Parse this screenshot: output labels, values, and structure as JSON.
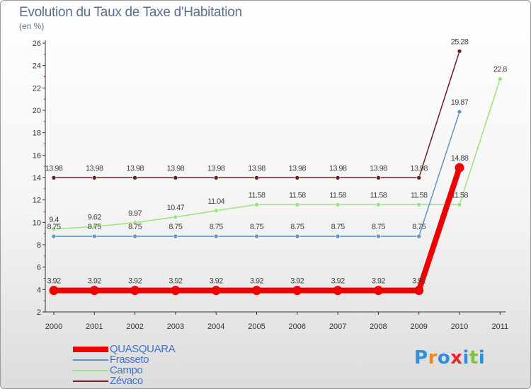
{
  "chart_data": {
    "type": "line",
    "title": "Evolution du Taux de Taxe d'Habitation",
    "unit_label": "(en %)",
    "xlabel": "",
    "ylabel": "",
    "ylim": [
      2,
      26
    ],
    "yticks": [
      2,
      4,
      6,
      8,
      10,
      12,
      14,
      16,
      18,
      20,
      22,
      24,
      26
    ],
    "x": [
      "2000",
      "2001",
      "2002",
      "2003",
      "2004",
      "2005",
      "2006",
      "2007",
      "2008",
      "2009",
      "2010",
      "2011"
    ],
    "grid": false,
    "legend_position": "bottom-left",
    "series": [
      {
        "name": "Zévaco",
        "color": "#6b1e1e",
        "values": [
          13.98,
          13.98,
          13.98,
          13.98,
          13.98,
          13.98,
          13.98,
          13.98,
          13.98,
          13.98,
          25.28,
          null
        ],
        "labels": [
          "13.98",
          "13.98",
          "13.98",
          "13.98",
          "13.98",
          "13.98",
          "13.98",
          "13.98",
          "13.98",
          "13.98",
          "25.28",
          null
        ]
      },
      {
        "name": "Campo",
        "color": "#9be37a",
        "values": [
          9.4,
          9.62,
          9.97,
          10.47,
          11.04,
          11.58,
          11.58,
          11.58,
          11.58,
          11.58,
          11.58,
          22.8
        ],
        "labels": [
          "9.4",
          "9.62",
          "9.97",
          "10.47",
          "11.04",
          "11.58",
          "11.58",
          "11.58",
          "11.58",
          "11.58",
          "11.58",
          "22.8"
        ]
      },
      {
        "name": "Frasseto",
        "color": "#5b96c8",
        "values": [
          8.75,
          8.75,
          8.75,
          8.75,
          8.75,
          8.75,
          8.75,
          8.75,
          8.75,
          8.75,
          19.87,
          null
        ],
        "labels": [
          "8.75",
          "8.75",
          "8.75",
          "8.75",
          "8.75",
          "8.75",
          "8.75",
          "8.75",
          "8.75",
          "8.75",
          "19.87",
          null
        ]
      },
      {
        "name": "QUASQUARA",
        "color": "#ee0000",
        "values": [
          3.92,
          3.92,
          3.92,
          3.92,
          3.92,
          3.92,
          3.92,
          3.92,
          3.92,
          3.92,
          14.88,
          null
        ],
        "labels": [
          "3.92",
          "3.92",
          "3.92",
          "3.92",
          "3.92",
          "3.92",
          "3.92",
          "3.92",
          "3.92",
          "3.92",
          "14.88",
          null
        ]
      }
    ],
    "legend": [
      "QUASQUARA",
      "Frasseto",
      "Campo",
      "Zévaco"
    ]
  },
  "colors": {
    "title": "#5b6f8f",
    "axis": "#333333",
    "legend_text": "#4472c4"
  },
  "logo": {
    "letters": [
      "P",
      "r",
      "o",
      "x",
      "i",
      "t",
      "i"
    ],
    "colors": [
      "#2f8fd8",
      "#f08a1c",
      "#2f8fd8",
      "#e8272a",
      "#2f8fd8",
      "#7cc243",
      "#2f8fd8"
    ]
  }
}
